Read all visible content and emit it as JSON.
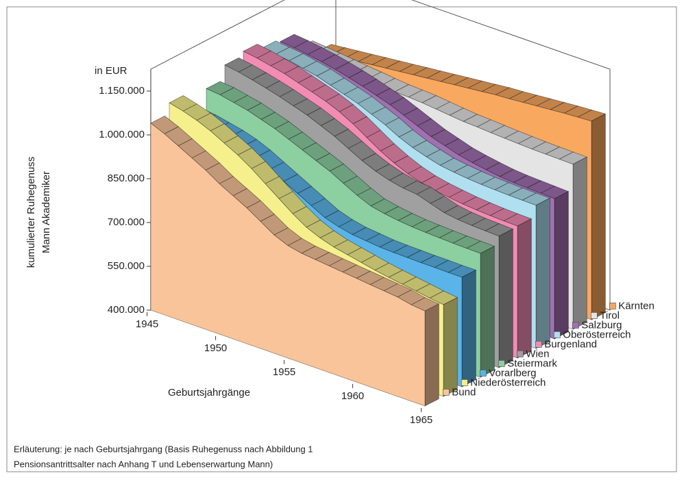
{
  "chart_data": {
    "type": "ribbon3d",
    "y_label": [
      "kumulierter Ruhegenuss",
      "Mann Akademiker"
    ],
    "x_label": "Geburtsjahrgänge",
    "unit_label": "in EUR",
    "caption": [
      "Erläuterung: je nach Geburtsjahrgang (Basis Ruhegenuss nach Abbildung 1",
      "Pensionsantrittsalter nach Anhang T und Lebenserwartung Mann)"
    ],
    "x": [
      1945,
      1946,
      1947,
      1948,
      1949,
      1950,
      1951,
      1952,
      1953,
      1954,
      1955,
      1956,
      1957,
      1958,
      1959,
      1960,
      1961,
      1962,
      1963,
      1964,
      1965
    ],
    "xlim": [
      1945,
      1965
    ],
    "xticks": [
      1945,
      1950,
      1955,
      1960,
      1965
    ],
    "ylim": [
      400000,
      1150000
    ],
    "yticks": [
      {
        "value": 400000,
        "label": "400.000"
      },
      {
        "value": 550000,
        "label": "550.000"
      },
      {
        "value": 700000,
        "label": "700.000"
      },
      {
        "value": 850000,
        "label": "850.000"
      },
      {
        "value": 1000000,
        "label": "1.000.000"
      },
      {
        "value": 1150000,
        "label": "1.150.000"
      }
    ],
    "series": [
      {
        "name": "Bund",
        "color": "#f9c49a",
        "values": [
          1040000,
          1020000,
          995000,
          970000,
          945000,
          915000,
          890000,
          865000,
          835000,
          805000,
          785000,
          775000,
          770000,
          765000,
          760000,
          755000,
          750000,
          745000,
          740000,
          730000,
          725000
        ]
      },
      {
        "name": "Niederösterreich",
        "color": "#f5f08c",
        "values": [
          1077000,
          1065000,
          1050000,
          1030000,
          1005000,
          980000,
          950000,
          915000,
          880000,
          845000,
          815000,
          795000,
          780000,
          770000,
          760000,
          750000,
          742000,
          735000,
          728000,
          720000,
          714000
        ]
      },
      {
        "name": "Vorarlberg",
        "color": "#5ab4e8",
        "values": [
          1000000,
          995000,
          985000,
          975000,
          960000,
          940000,
          915000,
          890000,
          865000,
          840000,
          815000,
          800000,
          790000,
          785000,
          780000,
          778000,
          777000,
          776000,
          776000,
          775000,
          775000
        ]
      },
      {
        "name": "Steiermark",
        "color": "#8ccfa0",
        "values": [
          1060000,
          1055000,
          1045000,
          1035000,
          1020000,
          1005000,
          985000,
          965000,
          945000,
          925000,
          900000,
          875000,
          855000,
          845000,
          838000,
          833000,
          830000,
          828000,
          826000,
          825000,
          824000
        ]
      },
      {
        "name": "Wien",
        "color": "#a0a0a0",
        "values": [
          1108000,
          1100000,
          1090000,
          1078000,
          1065000,
          1050000,
          1035000,
          1015000,
          995000,
          970000,
          945000,
          925000,
          910000,
          900000,
          895000,
          880000,
          865000,
          858000,
          854000,
          852000,
          850000
        ]
      },
      {
        "name": "Burgenland",
        "color": "#f28cb4",
        "values": [
          1122000,
          1115000,
          1105000,
          1095000,
          1080000,
          1065000,
          1050000,
          1030000,
          1005000,
          975000,
          945000,
          920000,
          900000,
          885000,
          875000,
          868000,
          862000,
          858000,
          855000,
          853000,
          852000
        ]
      },
      {
        "name": "Oberösterreich",
        "color": "#b0e0f0",
        "values": [
          1100000,
          1095000,
          1090000,
          1080000,
          1070000,
          1055000,
          1040000,
          1025000,
          1005000,
          985000,
          960000,
          940000,
          925000,
          912000,
          905000,
          900000,
          896000,
          894000,
          892000,
          891000,
          890000
        ]
      },
      {
        "name": "Salzburg",
        "color": "#a070b0",
        "values": [
          1090000,
          1085000,
          1078000,
          1070000,
          1060000,
          1048000,
          1035000,
          1020000,
          1005000,
          985000,
          965000,
          945000,
          930000,
          915000,
          905000,
          897000,
          890000,
          886000,
          884000,
          882000,
          880000
        ]
      },
      {
        "name": "Tirol",
        "color": "#e4e4e4",
        "values": [
          1035000,
          1030000,
          1025000,
          1020000,
          1015000,
          1010000,
          1005000,
          1000000,
          998000,
          995000,
          990000,
          985000,
          980000,
          978000,
          975000,
          972000,
          970000,
          968000,
          967000,
          966000,
          965000
        ]
      },
      {
        "name": "Kärnten",
        "color": "#f9a860",
        "values": [
          990000,
          995000,
          1000000,
          1005000,
          1010000,
          1015000,
          1020000,
          1025000,
          1030000,
          1035000,
          1040000,
          1045000,
          1050000,
          1055000,
          1058000,
          1062000,
          1066000,
          1070000,
          1074000,
          1077000,
          1080000
        ]
      }
    ]
  }
}
